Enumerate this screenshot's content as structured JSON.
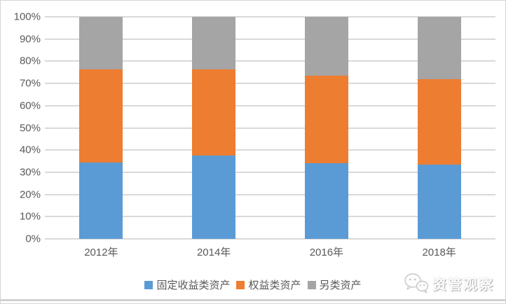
{
  "chart_data": {
    "type": "bar",
    "stacked": true,
    "unit": "percent",
    "categories": [
      "2012年",
      "2014年",
      "2016年",
      "2018年"
    ],
    "series": [
      {
        "name": "固定收益类资产",
        "color": "#5B9BD5",
        "values": [
          34.5,
          37.5,
          34.0,
          33.5
        ]
      },
      {
        "name": "权益类资产",
        "color": "#ED7D31",
        "values": [
          42.0,
          39.0,
          39.5,
          38.5
        ]
      },
      {
        "name": "另类资产",
        "color": "#A5A5A5",
        "values": [
          23.5,
          23.5,
          26.5,
          28.0
        ]
      }
    ],
    "yticks": [
      "100%",
      "90%",
      "80%",
      "70%",
      "60%",
      "50%",
      "40%",
      "30%",
      "20%",
      "10%",
      "0%"
    ],
    "ylim": [
      0,
      100
    ],
    "grid": true,
    "legend_position": "bottom",
    "title": "",
    "xlabel": "",
    "ylabel": ""
  },
  "watermark": {
    "label": "资管观察",
    "icon": "wechat-icon"
  },
  "colors": {
    "grid": "#D9D9D9",
    "axis_text": "#595959",
    "frame_border": "#D5D5D5",
    "bottom_divider": "#D2D2D2",
    "watermark_stroke": "#C6C6C6"
  }
}
